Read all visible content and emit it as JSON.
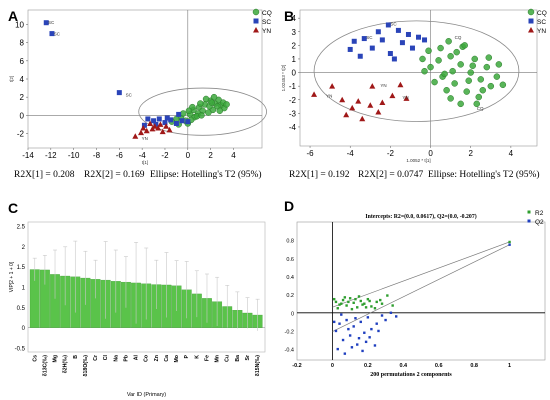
{
  "panels": {
    "a": {
      "letter": "A",
      "stats": {
        "r2x1": "R2X[1] = 0.208",
        "r2x2": "R2X[2] = 0.169",
        "ellipse": "Ellipse: Hotelling's T2 (95%)"
      }
    },
    "b": {
      "letter": "B",
      "stats": {
        "r2x1": "R2X[1] = 0.192",
        "r2x2": "R2X[2] = 0.0747",
        "ellipse": "Ellipse: Hotelling's T2 (95%)"
      }
    },
    "c": {
      "letter": "C"
    },
    "d": {
      "letter": "D"
    }
  },
  "colors": {
    "cq": "#3ca83c",
    "sc": "#2a44b8",
    "yn": "#a01818",
    "bar": "#5ac34a",
    "r2": "#2e9e2e",
    "q2": "#1f3fbf"
  },
  "chart_data": [
    {
      "id": "A",
      "type": "scatter",
      "xlabel": "t[1]",
      "ylabel": "t[2]",
      "xlim": [
        -14,
        6.5
      ],
      "ylim": [
        -3.6,
        11.6
      ],
      "xticks": [
        -14,
        -12,
        -10,
        -8,
        -6,
        -4,
        -2,
        0,
        2,
        4
      ],
      "yticks": [
        -2,
        0,
        2,
        4,
        6,
        8,
        10
      ],
      "legend": {
        "placement": "top-right",
        "entries": [
          "CQ",
          "SC",
          "YN"
        ]
      },
      "ellipse": {
        "cx": 1.3,
        "cy": 0.4,
        "rx": 5.6,
        "ry": 2.6
      },
      "labels": [
        {
          "text": "SC",
          "x": -12.6,
          "y": 10.3
        },
        {
          "text": "SC",
          "x": -12.1,
          "y": 9.0
        },
        {
          "text": "SC",
          "x": -5.8,
          "y": 2.3
        },
        {
          "text": "YN",
          "x": -4.4,
          "y": -2.5
        }
      ],
      "series": [
        {
          "name": "CQ",
          "points": [
            [
              0.2,
              0.1
            ],
            [
              0.5,
              0.6
            ],
            [
              1.0,
              0.9
            ],
            [
              1.5,
              1.2
            ],
            [
              2.0,
              1.6
            ],
            [
              2.4,
              1.3
            ],
            [
              2.7,
              1.7
            ],
            [
              2.9,
              1.1
            ],
            [
              3.1,
              1.4
            ],
            [
              3.2,
              0.8
            ],
            [
              2.2,
              0.6
            ],
            [
              1.8,
              0.3
            ],
            [
              1.3,
              0.5
            ],
            [
              0.9,
              0.2
            ],
            [
              0.6,
              -0.2
            ],
            [
              0.3,
              -0.5
            ],
            [
              -0.2,
              -0.6
            ],
            [
              -0.6,
              -0.3
            ],
            [
              -1.0,
              -0.4
            ],
            [
              -1.4,
              -0.7
            ],
            [
              1.6,
              1.8
            ],
            [
              2.3,
              2.0
            ],
            [
              2.6,
              1.0
            ],
            [
              1.1,
              1.3
            ],
            [
              0.4,
              0.9
            ],
            [
              -0.4,
              0.2
            ],
            [
              0.0,
              -0.9
            ],
            [
              0.8,
              -0.1
            ],
            [
              1.9,
              1.0
            ],
            [
              2.8,
              0.5
            ],
            [
              3.4,
              1.2
            ],
            [
              1.2,
              0.0
            ],
            [
              -0.8,
              -1.0
            ],
            [
              0.1,
              0.5
            ],
            [
              2.1,
              1.4
            ]
          ]
        },
        {
          "name": "SC",
          "points": [
            [
              -12.4,
              10.2
            ],
            [
              -11.9,
              9.0
            ],
            [
              -6.0,
              2.5
            ],
            [
              -3.5,
              -0.4
            ],
            [
              -3.0,
              -0.6
            ],
            [
              -2.5,
              -0.4
            ],
            [
              -2.0,
              -0.8
            ],
            [
              -1.5,
              -0.5
            ],
            [
              -1.0,
              -0.9
            ],
            [
              -0.5,
              -0.6
            ],
            [
              0.0,
              -0.7
            ],
            [
              -2.8,
              -1.0
            ],
            [
              -1.8,
              -0.3
            ],
            [
              -3.8,
              -1.1
            ],
            [
              -0.8,
              0.1
            ]
          ]
        },
        {
          "name": "YN",
          "points": [
            [
              -4.6,
              -2.3
            ],
            [
              -4.1,
              -1.9
            ],
            [
              -3.6,
              -1.7
            ],
            [
              -3.1,
              -1.5
            ],
            [
              -2.6,
              -1.4
            ],
            [
              -2.2,
              -1.8
            ],
            [
              -1.9,
              -1.2
            ],
            [
              -3.3,
              -0.9
            ],
            [
              -2.9,
              -1.2
            ],
            [
              -2.4,
              -1.0
            ],
            [
              -3.9,
              -1.4
            ],
            [
              -1.6,
              -1.6
            ]
          ]
        }
      ]
    },
    {
      "id": "B",
      "type": "scatter",
      "xlabel": "1.0052 * t[1]",
      "ylabel": "1.02453 * t[2]",
      "xlim": [
        -6.5,
        5.3
      ],
      "ylim": [
        -5.4,
        4.6
      ],
      "xticks": [
        -6,
        -4,
        -2,
        0,
        2,
        4
      ],
      "yticks": [
        -4,
        -3,
        -2,
        -1,
        0,
        1,
        2,
        3,
        4
      ],
      "legend": {
        "placement": "top-right",
        "entries": [
          "CQ",
          "SC",
          "YN"
        ]
      },
      "ellipse": {
        "cx": -0.7,
        "cy": 0.1,
        "rx": 5.1,
        "ry": 3.7
      },
      "labels": [
        {
          "text": "SC",
          "x": -2.2,
          "y": 3.6
        },
        {
          "text": "SC",
          "x": -3.4,
          "y": 2.6
        },
        {
          "text": "YN",
          "x": -5.4,
          "y": -1.7
        },
        {
          "text": "YN",
          "x": -2.7,
          "y": -0.9
        },
        {
          "text": "YN",
          "x": -1.6,
          "y": -1.8
        },
        {
          "text": "CQ",
          "x": 1.0,
          "y": 2.6
        },
        {
          "text": "CQ",
          "x": 2.1,
          "y": -2.6
        }
      ],
      "series": [
        {
          "name": "CQ",
          "points": [
            [
              0.5,
              1.8
            ],
            [
              1.0,
              1.2
            ],
            [
              1.5,
              0.6
            ],
            [
              2.0,
              0.0
            ],
            [
              2.5,
              -0.5
            ],
            [
              3.0,
              -1.0
            ],
            [
              1.8,
              -1.4
            ],
            [
              1.2,
              -0.8
            ],
            [
              0.6,
              -0.3
            ],
            [
              0.0,
              0.4
            ],
            [
              -0.4,
              1.0
            ],
            [
              0.9,
              2.3
            ],
            [
              1.6,
              1.9
            ],
            [
              2.2,
              1.0
            ],
            [
              2.8,
              0.4
            ],
            [
              3.3,
              -0.3
            ],
            [
              3.6,
              -0.9
            ],
            [
              2.4,
              -1.8
            ],
            [
              1.5,
              -2.3
            ],
            [
              0.8,
              -1.3
            ],
            [
              0.2,
              -0.7
            ],
            [
              -0.3,
              0.1
            ],
            [
              1.1,
              0.1
            ],
            [
              1.9,
              -0.6
            ],
            [
              2.6,
              -1.3
            ],
            [
              0.4,
              0.9
            ],
            [
              1.3,
              1.5
            ],
            [
              2.1,
              0.5
            ],
            [
              0.7,
              -0.1
            ],
            [
              -0.1,
              1.6
            ],
            [
              1.7,
              2.0
            ],
            [
              2.9,
              1.1
            ],
            [
              3.4,
              0.6
            ],
            [
              2.3,
              -2.3
            ],
            [
              1.0,
              -1.9
            ]
          ]
        },
        {
          "name": "SC",
          "points": [
            [
              -2.1,
              3.5
            ],
            [
              -1.6,
              3.1
            ],
            [
              -1.1,
              2.8
            ],
            [
              -0.6,
              2.6
            ],
            [
              -2.6,
              3.0
            ],
            [
              -3.3,
              2.5
            ],
            [
              -3.8,
              2.3
            ],
            [
              -1.4,
              2.2
            ],
            [
              -2.9,
              1.8
            ],
            [
              -3.5,
              1.2
            ],
            [
              -2.0,
              1.4
            ],
            [
              -0.9,
              1.8
            ],
            [
              -0.3,
              2.4
            ],
            [
              -2.4,
              2.4
            ],
            [
              -1.8,
              1.0
            ],
            [
              -4.0,
              1.7
            ]
          ]
        },
        {
          "name": "YN",
          "points": [
            [
              -5.8,
              -1.6
            ],
            [
              -4.9,
              -1.0
            ],
            [
              -4.4,
              -2.0
            ],
            [
              -3.9,
              -2.6
            ],
            [
              -3.4,
              -3.4
            ],
            [
              -2.9,
              -1.0
            ],
            [
              -2.4,
              -2.2
            ],
            [
              -1.9,
              -1.7
            ],
            [
              -1.2,
              -1.9
            ],
            [
              -3.0,
              -2.4
            ],
            [
              -4.2,
              -3.1
            ],
            [
              -2.6,
              -2.9
            ],
            [
              -3.6,
              -2.1
            ],
            [
              -1.5,
              -0.9
            ]
          ]
        }
      ]
    },
    {
      "id": "C",
      "type": "bar",
      "xlabel": "Var ID (Primary)",
      "ylabel": "VIP[2 + 1 + 0]",
      "ylim": [
        -0.6,
        2.6
      ],
      "yticks": [
        -0.5,
        0,
        0.5,
        1,
        1.5,
        2,
        2.5
      ],
      "categories": [
        "Cs",
        "δ13C(‰)",
        "Mg",
        "δ2H(‰)",
        "B",
        "δ18O(‰)",
        "Cr",
        "Cl",
        "Na",
        "Pb",
        "Al",
        "Co",
        "Zn",
        "Ca",
        "Mo",
        "P",
        "K",
        "Fe",
        "Mn",
        "Cu",
        "Ba",
        "Sr",
        "δ15N(‰)"
      ],
      "values": [
        1.43,
        1.42,
        1.31,
        1.27,
        1.25,
        1.22,
        1.19,
        1.17,
        1.14,
        1.12,
        1.1,
        1.08,
        1.06,
        1.05,
        1.03,
        0.93,
        0.83,
        0.72,
        0.64,
        0.52,
        0.43,
        0.36,
        0.31
      ],
      "errors": [
        0.28,
        0.36,
        0.6,
        0.72,
        0.88,
        0.66,
        0.47,
        0.95,
        0.77,
        0.63,
        1.0,
        0.88,
        0.6,
        0.8,
        0.62,
        0.7,
        0.57,
        0.6,
        0.6,
        0.52,
        0.45,
        0.38,
        0.39
      ]
    },
    {
      "id": "D",
      "type": "scatter",
      "title": "Intercepts: R2=(0.0, 0.0617), Q2=(0.0, -0.207)",
      "xlabel": "200 permutations 2 components",
      "xlim": [
        -0.2,
        1.2
      ],
      "ylim": [
        -0.52,
        1.0
      ],
      "xticks": [
        -0.2,
        0,
        0.2,
        0.4,
        0.6,
        0.8,
        1
      ],
      "yticks": [
        -0.4,
        -0.2,
        0,
        0.2,
        0.4,
        0.6,
        0.8
      ],
      "legend": {
        "placement": "top-right",
        "entries": [
          "R2",
          "Q2"
        ]
      },
      "lines": [
        {
          "series": "R2",
          "from": [
            0,
            0.0617
          ],
          "to": [
            1,
            0.78
          ]
        },
        {
          "series": "Q2",
          "from": [
            0,
            -0.207
          ],
          "to": [
            1,
            0.75
          ]
        }
      ],
      "series": [
        {
          "name": "R2",
          "points": [
            [
              1,
              0.78
            ],
            [
              0.02,
              0.12
            ],
            [
              0.04,
              0.09
            ],
            [
              0.06,
              0.14
            ],
            [
              0.08,
              0.08
            ],
            [
              0.1,
              0.16
            ],
            [
              0.12,
              0.11
            ],
            [
              0.14,
              0.06
            ],
            [
              0.16,
              0.13
            ],
            [
              0.18,
              0.1
            ],
            [
              0.2,
              0.15
            ],
            [
              0.22,
              0.07
            ],
            [
              0.25,
              0.12
            ],
            [
              0.28,
              0.1
            ],
            [
              0.31,
              0.19
            ],
            [
              0.34,
              0.08
            ],
            [
              0.03,
              0.05
            ],
            [
              0.07,
              0.17
            ],
            [
              0.11,
              0.04
            ],
            [
              0.15,
              0.18
            ],
            [
              0.19,
              0.06
            ],
            [
              0.05,
              0.1
            ],
            [
              0.09,
              0.12
            ],
            [
              0.13,
              0.15
            ],
            [
              0.17,
              0.09
            ],
            [
              0.21,
              0.13
            ],
            [
              0.24,
              0.05
            ],
            [
              0.01,
              0.15
            ],
            [
              0.27,
              0.14
            ]
          ]
        },
        {
          "name": "Q2",
          "points": [
            [
              1,
              0.75
            ],
            [
              0.02,
              -0.2
            ],
            [
              0.04,
              -0.12
            ],
            [
              0.06,
              -0.3
            ],
            [
              0.08,
              -0.08
            ],
            [
              0.1,
              -0.25
            ],
            [
              0.12,
              -0.15
            ],
            [
              0.14,
              -0.35
            ],
            [
              0.16,
              -0.1
            ],
            [
              0.18,
              -0.22
            ],
            [
              0.2,
              -0.05
            ],
            [
              0.22,
              -0.18
            ],
            [
              0.25,
              -0.12
            ],
            [
              0.28,
              -0.03
            ],
            [
              0.3,
              -0.08
            ],
            [
              0.33,
              0.0
            ],
            [
              0.36,
              -0.04
            ],
            [
              0.03,
              -0.4
            ],
            [
              0.07,
              -0.45
            ],
            [
              0.11,
              -0.38
            ],
            [
              0.15,
              -0.28
            ],
            [
              0.19,
              -0.32
            ],
            [
              0.05,
              -0.02
            ],
            [
              0.09,
              -0.18
            ],
            [
              0.13,
              -0.06
            ],
            [
              0.17,
              -0.42
            ],
            [
              0.21,
              -0.27
            ],
            [
              0.24,
              -0.36
            ],
            [
              0.01,
              -0.1
            ],
            [
              0.26,
              -0.2
            ]
          ]
        }
      ]
    }
  ]
}
